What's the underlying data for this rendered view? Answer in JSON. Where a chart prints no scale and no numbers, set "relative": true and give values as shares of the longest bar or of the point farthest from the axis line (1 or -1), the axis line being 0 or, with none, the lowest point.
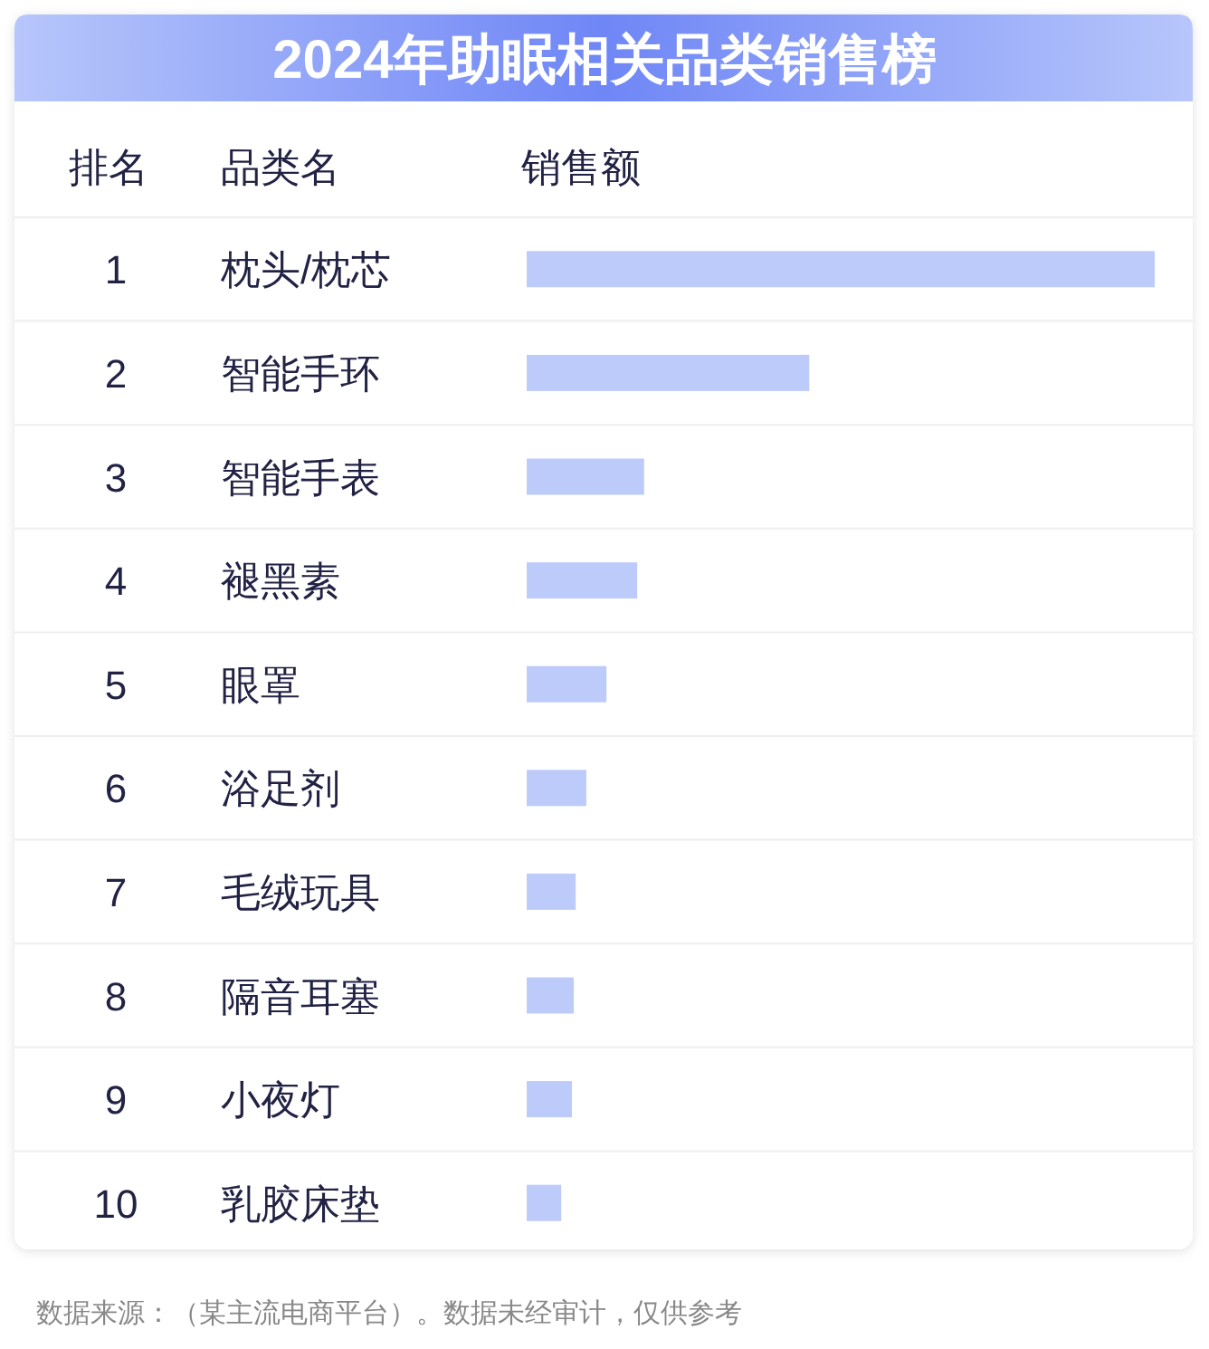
{
  "chart_data": {
    "type": "bar",
    "orientation": "horizontal",
    "relative": true,
    "title": "2024年助眠相关品类销售榜",
    "categories": [
      "枕头/枕芯",
      "智能手环",
      "智能手表",
      "褪黑素",
      "眼罩",
      "浴足剂",
      "毛绒玩具",
      "隔音耳塞",
      "小夜灯",
      "乳胶床垫"
    ],
    "values": [
      1,
      0.45,
      0.187,
      0.176,
      0.127,
      0.095,
      0.078,
      0.075,
      0.072,
      0.055
    ],
    "color": "#bdcbfb",
    "annotations": [
      "排名",
      "品类名",
      "销售额",
      "1",
      "2",
      "3",
      "4",
      "5",
      "6",
      "7",
      "8",
      "9",
      "10",
      "数据来源：（某主流电商平台）。数据未经审计，仅供参考"
    ]
  }
}
